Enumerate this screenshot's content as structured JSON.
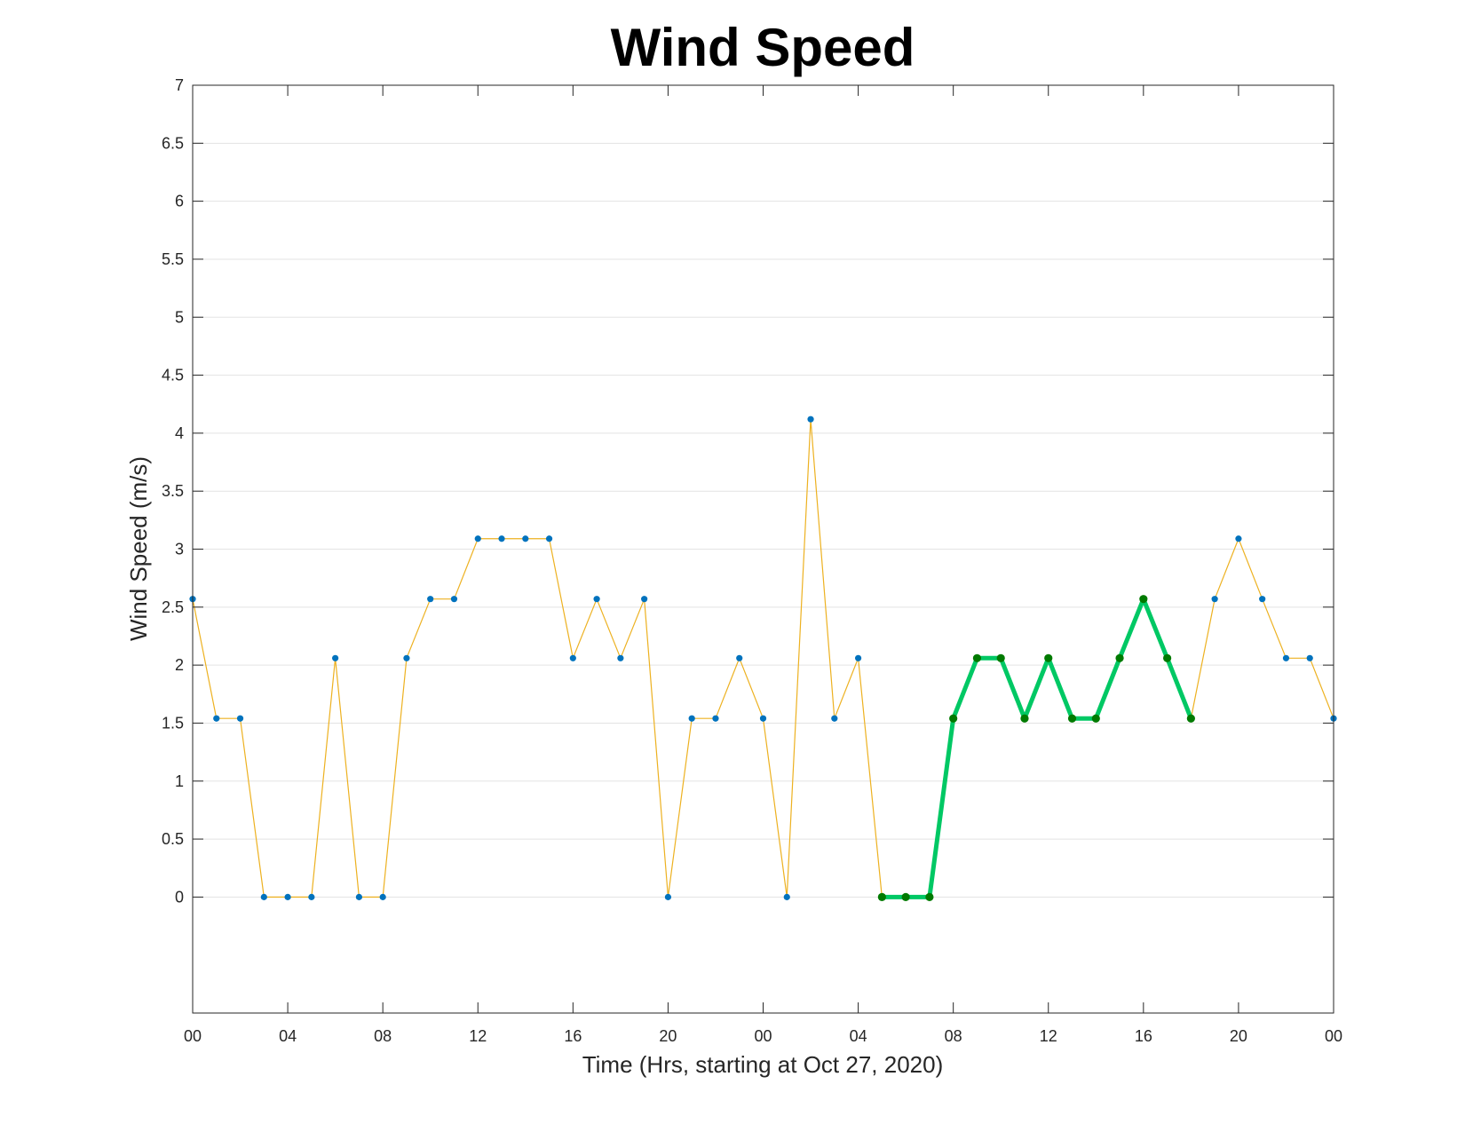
{
  "chart_data": {
    "type": "line",
    "title": "Wind Speed",
    "xlabel": "Time (Hrs, starting at Oct 27, 2020)",
    "ylabel": "Wind Speed (m/s)",
    "x_tick_labels": [
      "00",
      "04",
      "08",
      "12",
      "16",
      "20",
      "00",
      "04",
      "08",
      "12",
      "16",
      "20",
      "00"
    ],
    "x_tick_hours": [
      0,
      4,
      8,
      12,
      16,
      20,
      24,
      28,
      32,
      36,
      40,
      44,
      48
    ],
    "y_ticks": [
      "0",
      "0.5",
      "1",
      "1.5",
      "2",
      "2.5",
      "3",
      "3.5",
      "4",
      "4.5",
      "5",
      "5.5",
      "6",
      "6.5",
      "7"
    ],
    "y_tick_values": [
      0,
      0.5,
      1,
      1.5,
      2,
      2.5,
      3,
      3.5,
      4,
      4.5,
      5,
      5.5,
      6,
      6.5,
      7
    ],
    "xlim": [
      0,
      48
    ],
    "ylim": [
      -1,
      7
    ],
    "grid": "horizontal",
    "series": [
      {
        "x": [
          0,
          1,
          2,
          3,
          4,
          5,
          6,
          7,
          8,
          9,
          10,
          11,
          12,
          13,
          14,
          15,
          16,
          17,
          18,
          19,
          20,
          21,
          22,
          23,
          24,
          25,
          26,
          27,
          28,
          29,
          30,
          31,
          32,
          33,
          34,
          35,
          36,
          37,
          38,
          39,
          40,
          41,
          42,
          43,
          44,
          45,
          46,
          47,
          48
        ],
        "values": [
          2.57,
          1.54,
          1.54,
          0,
          0,
          0,
          2.06,
          0,
          0,
          2.06,
          2.57,
          2.57,
          3.09,
          3.09,
          3.09,
          3.09,
          2.06,
          2.57,
          2.06,
          2.57,
          0,
          1.54,
          1.54,
          2.06,
          1.54,
          0,
          4.12,
          1.54,
          2.06,
          0,
          0,
          0,
          1.54,
          2.06,
          2.06,
          1.54,
          2.06,
          1.54,
          1.54,
          2.06,
          2.57,
          2.06,
          1.54,
          2.57,
          3.09,
          2.57,
          2.06,
          2.06,
          1.54
        ],
        "line_color": "#EDB120",
        "marker_color": "#0072BD"
      },
      {
        "x": [
          29,
          30,
          31,
          32,
          33,
          34,
          35,
          36,
          37,
          38,
          39,
          40,
          41,
          42
        ],
        "values": [
          0,
          0,
          0,
          1.54,
          2.06,
          2.06,
          1.54,
          2.06,
          1.54,
          1.54,
          2.06,
          2.57,
          2.06,
          1.54
        ],
        "line_color": "#00C864",
        "marker_color": "#007A00"
      }
    ]
  }
}
